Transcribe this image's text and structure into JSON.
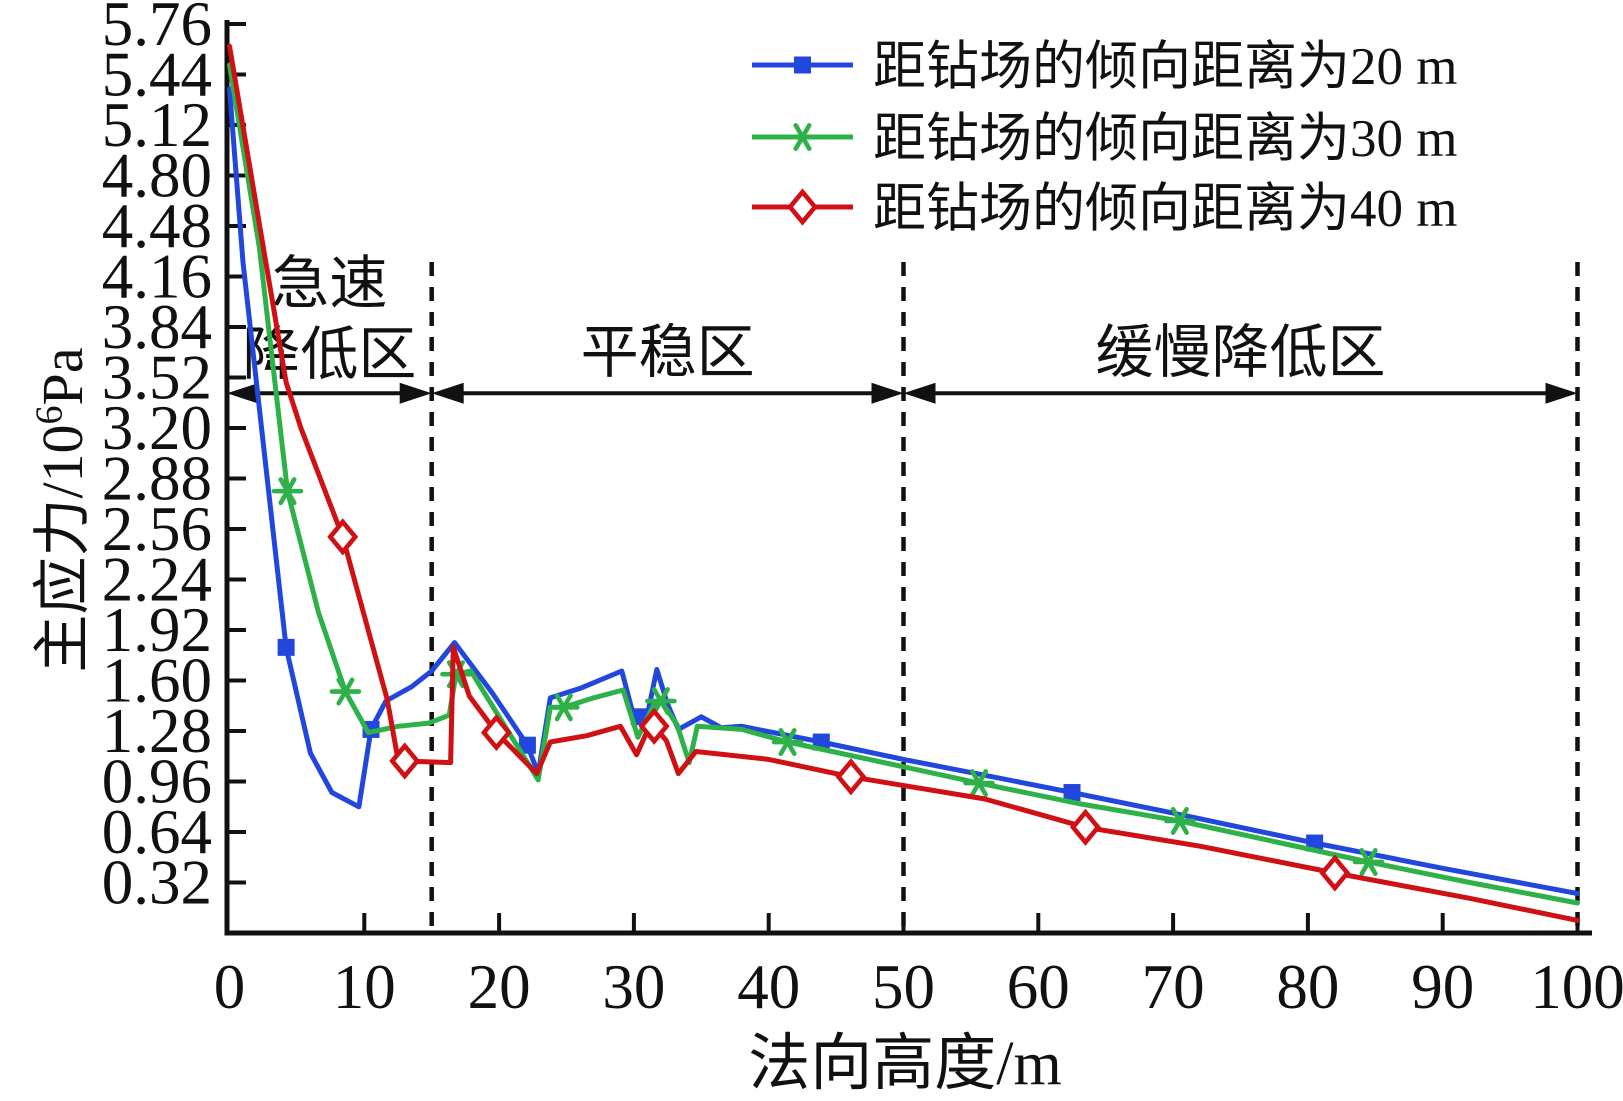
{
  "figure": {
    "background": "#ffffff",
    "text_color": "#111111"
  },
  "axes": {
    "x_label": "法向高度/m",
    "y_label_base": "主应力/10",
    "y_label_sup": "6",
    "y_label_unit": "Pa",
    "x_tick_labels": [
      "0",
      "10",
      "20",
      "30",
      "40",
      "50",
      "60",
      "70",
      "80",
      "90",
      "100"
    ],
    "y_tick_labels": [
      "0.32",
      "0.64",
      "0.96",
      "1.28",
      "1.60",
      "1.92",
      "2.24",
      "2.56",
      "2.88",
      "3.20",
      "3.52",
      "3.84",
      "4.16",
      "4.48",
      "4.80",
      "5.12",
      "5.44",
      "5.76"
    ]
  },
  "chart_data": {
    "type": "line",
    "xlabel": "法向高度/m",
    "ylabel": "主应力/10^6 Pa",
    "xlim": [
      0,
      100
    ],
    "ylim": [
      0,
      5.76
    ],
    "x_tick_step": 10,
    "y_tick_step": 0.32,
    "grid": false,
    "legend_position": "top-right",
    "zone_dividers_x": [
      15,
      50,
      100
    ],
    "zone_arrow_y": 3.42,
    "zones": [
      {
        "label_lines": [
          "急速",
          "降低区"
        ],
        "from": 0,
        "to": 15
      },
      {
        "label_lines": [
          "平稳区"
        ],
        "from": 15,
        "to": 50
      },
      {
        "label_lines": [
          "缓慢降低区"
        ],
        "from": 50,
        "to": 100
      }
    ],
    "series": [
      {
        "name": "距钻场的倾向距离为20 m",
        "color": "#2247dd",
        "marker": "square",
        "points": [
          [
            0,
            5.35
          ],
          [
            1,
            4.25
          ],
          [
            4.2,
            1.81
          ],
          [
            6,
            1.14
          ],
          [
            7.6,
            0.89
          ],
          [
            9.6,
            0.8
          ],
          [
            10.5,
            1.29
          ],
          [
            11.6,
            1.47
          ],
          [
            13.5,
            1.56
          ],
          [
            15,
            1.66
          ],
          [
            16.7,
            1.84
          ],
          [
            19.5,
            1.52
          ],
          [
            22.1,
            1.19
          ],
          [
            22.9,
            1.01
          ],
          [
            23.8,
            1.49
          ],
          [
            26,
            1.55
          ],
          [
            29.1,
            1.66
          ],
          [
            29.9,
            1.4
          ],
          [
            30.4,
            1.37
          ],
          [
            30.9,
            1.34
          ],
          [
            31.7,
            1.67
          ],
          [
            32.5,
            1.45
          ],
          [
            33.3,
            1.29
          ],
          [
            35,
            1.37
          ],
          [
            36.5,
            1.3
          ],
          [
            38,
            1.31
          ],
          [
            43.9,
            1.21
          ],
          [
            50,
            1.1
          ],
          [
            56,
            1.0
          ],
          [
            62.5,
            0.89
          ],
          [
            70,
            0.76
          ],
          [
            80.5,
            0.57
          ],
          [
            90,
            0.41
          ],
          [
            100,
            0.25
          ]
        ],
        "marker_points": [
          [
            4.2,
            1.81
          ],
          [
            10.5,
            1.29
          ],
          [
            22.1,
            1.19
          ],
          [
            30.4,
            1.37
          ],
          [
            43.9,
            1.21
          ],
          [
            62.5,
            0.89
          ],
          [
            80.5,
            0.57
          ]
        ]
      },
      {
        "name": "距钻场的倾向距离为30 m",
        "color": "#2fb14a",
        "marker": "asterisk",
        "points": [
          [
            0,
            5.5
          ],
          [
            2.2,
            4.35
          ],
          [
            4.3,
            2.8
          ],
          [
            6.6,
            2.03
          ],
          [
            8.6,
            1.53
          ],
          [
            10.3,
            1.27
          ],
          [
            12.5,
            1.31
          ],
          [
            14.8,
            1.33
          ],
          [
            16.3,
            1.38
          ],
          [
            16.8,
            1.64
          ],
          [
            17.9,
            1.66
          ],
          [
            22.9,
            0.97
          ],
          [
            23.8,
            1.43
          ],
          [
            24.8,
            1.43
          ],
          [
            27,
            1.49
          ],
          [
            29.2,
            1.54
          ],
          [
            30.3,
            1.24
          ],
          [
            31.5,
            1.45
          ],
          [
            32,
            1.47
          ],
          [
            33.2,
            1.32
          ],
          [
            34.1,
            1.08
          ],
          [
            34.7,
            1.31
          ],
          [
            38,
            1.29
          ],
          [
            41.4,
            1.21
          ],
          [
            48,
            1.09
          ],
          [
            55.6,
            0.95
          ],
          [
            63,
            0.82
          ],
          [
            70.5,
            0.71
          ],
          [
            78,
            0.57
          ],
          [
            84.5,
            0.45
          ],
          [
            92,
            0.32
          ],
          [
            100,
            0.19
          ]
        ],
        "marker_points": [
          [
            4.3,
            2.8
          ],
          [
            8.6,
            1.53
          ],
          [
            16.8,
            1.64
          ],
          [
            24.8,
            1.43
          ],
          [
            32,
            1.47
          ],
          [
            41.4,
            1.21
          ],
          [
            55.6,
            0.95
          ],
          [
            70.5,
            0.71
          ],
          [
            84.5,
            0.45
          ]
        ]
      },
      {
        "name": "距钻场的倾向距离为40 m",
        "color": "#cf1014",
        "marker": "diamond",
        "points": [
          [
            0,
            5.62
          ],
          [
            2,
            4.6
          ],
          [
            4.2,
            3.49
          ],
          [
            5.3,
            3.2
          ],
          [
            8.4,
            2.51
          ],
          [
            11.7,
            1.48
          ],
          [
            12.5,
            1.1
          ],
          [
            13,
            1.09
          ],
          [
            16.4,
            1.08
          ],
          [
            16.6,
            1.81
          ],
          [
            17.8,
            1.5
          ],
          [
            19.8,
            1.27
          ],
          [
            22.8,
            1.01
          ],
          [
            23.8,
            1.21
          ],
          [
            26.5,
            1.25
          ],
          [
            29,
            1.31
          ],
          [
            30.2,
            1.13
          ],
          [
            31.1,
            1.3
          ],
          [
            31.5,
            1.31
          ],
          [
            32.4,
            1.22
          ],
          [
            33.3,
            1.01
          ],
          [
            34.6,
            1.15
          ],
          [
            40,
            1.1
          ],
          [
            46.1,
            0.99
          ],
          [
            56,
            0.85
          ],
          [
            63.5,
            0.67
          ],
          [
            72,
            0.55
          ],
          [
            82,
            0.38
          ],
          [
            92,
            0.22
          ],
          [
            100,
            0.08
          ]
        ],
        "marker_points": [
          [
            8.4,
            2.51
          ],
          [
            13,
            1.09
          ],
          [
            19.8,
            1.27
          ],
          [
            31.5,
            1.31
          ],
          [
            46.1,
            0.99
          ],
          [
            63.5,
            0.67
          ],
          [
            82,
            0.38
          ]
        ]
      }
    ]
  }
}
